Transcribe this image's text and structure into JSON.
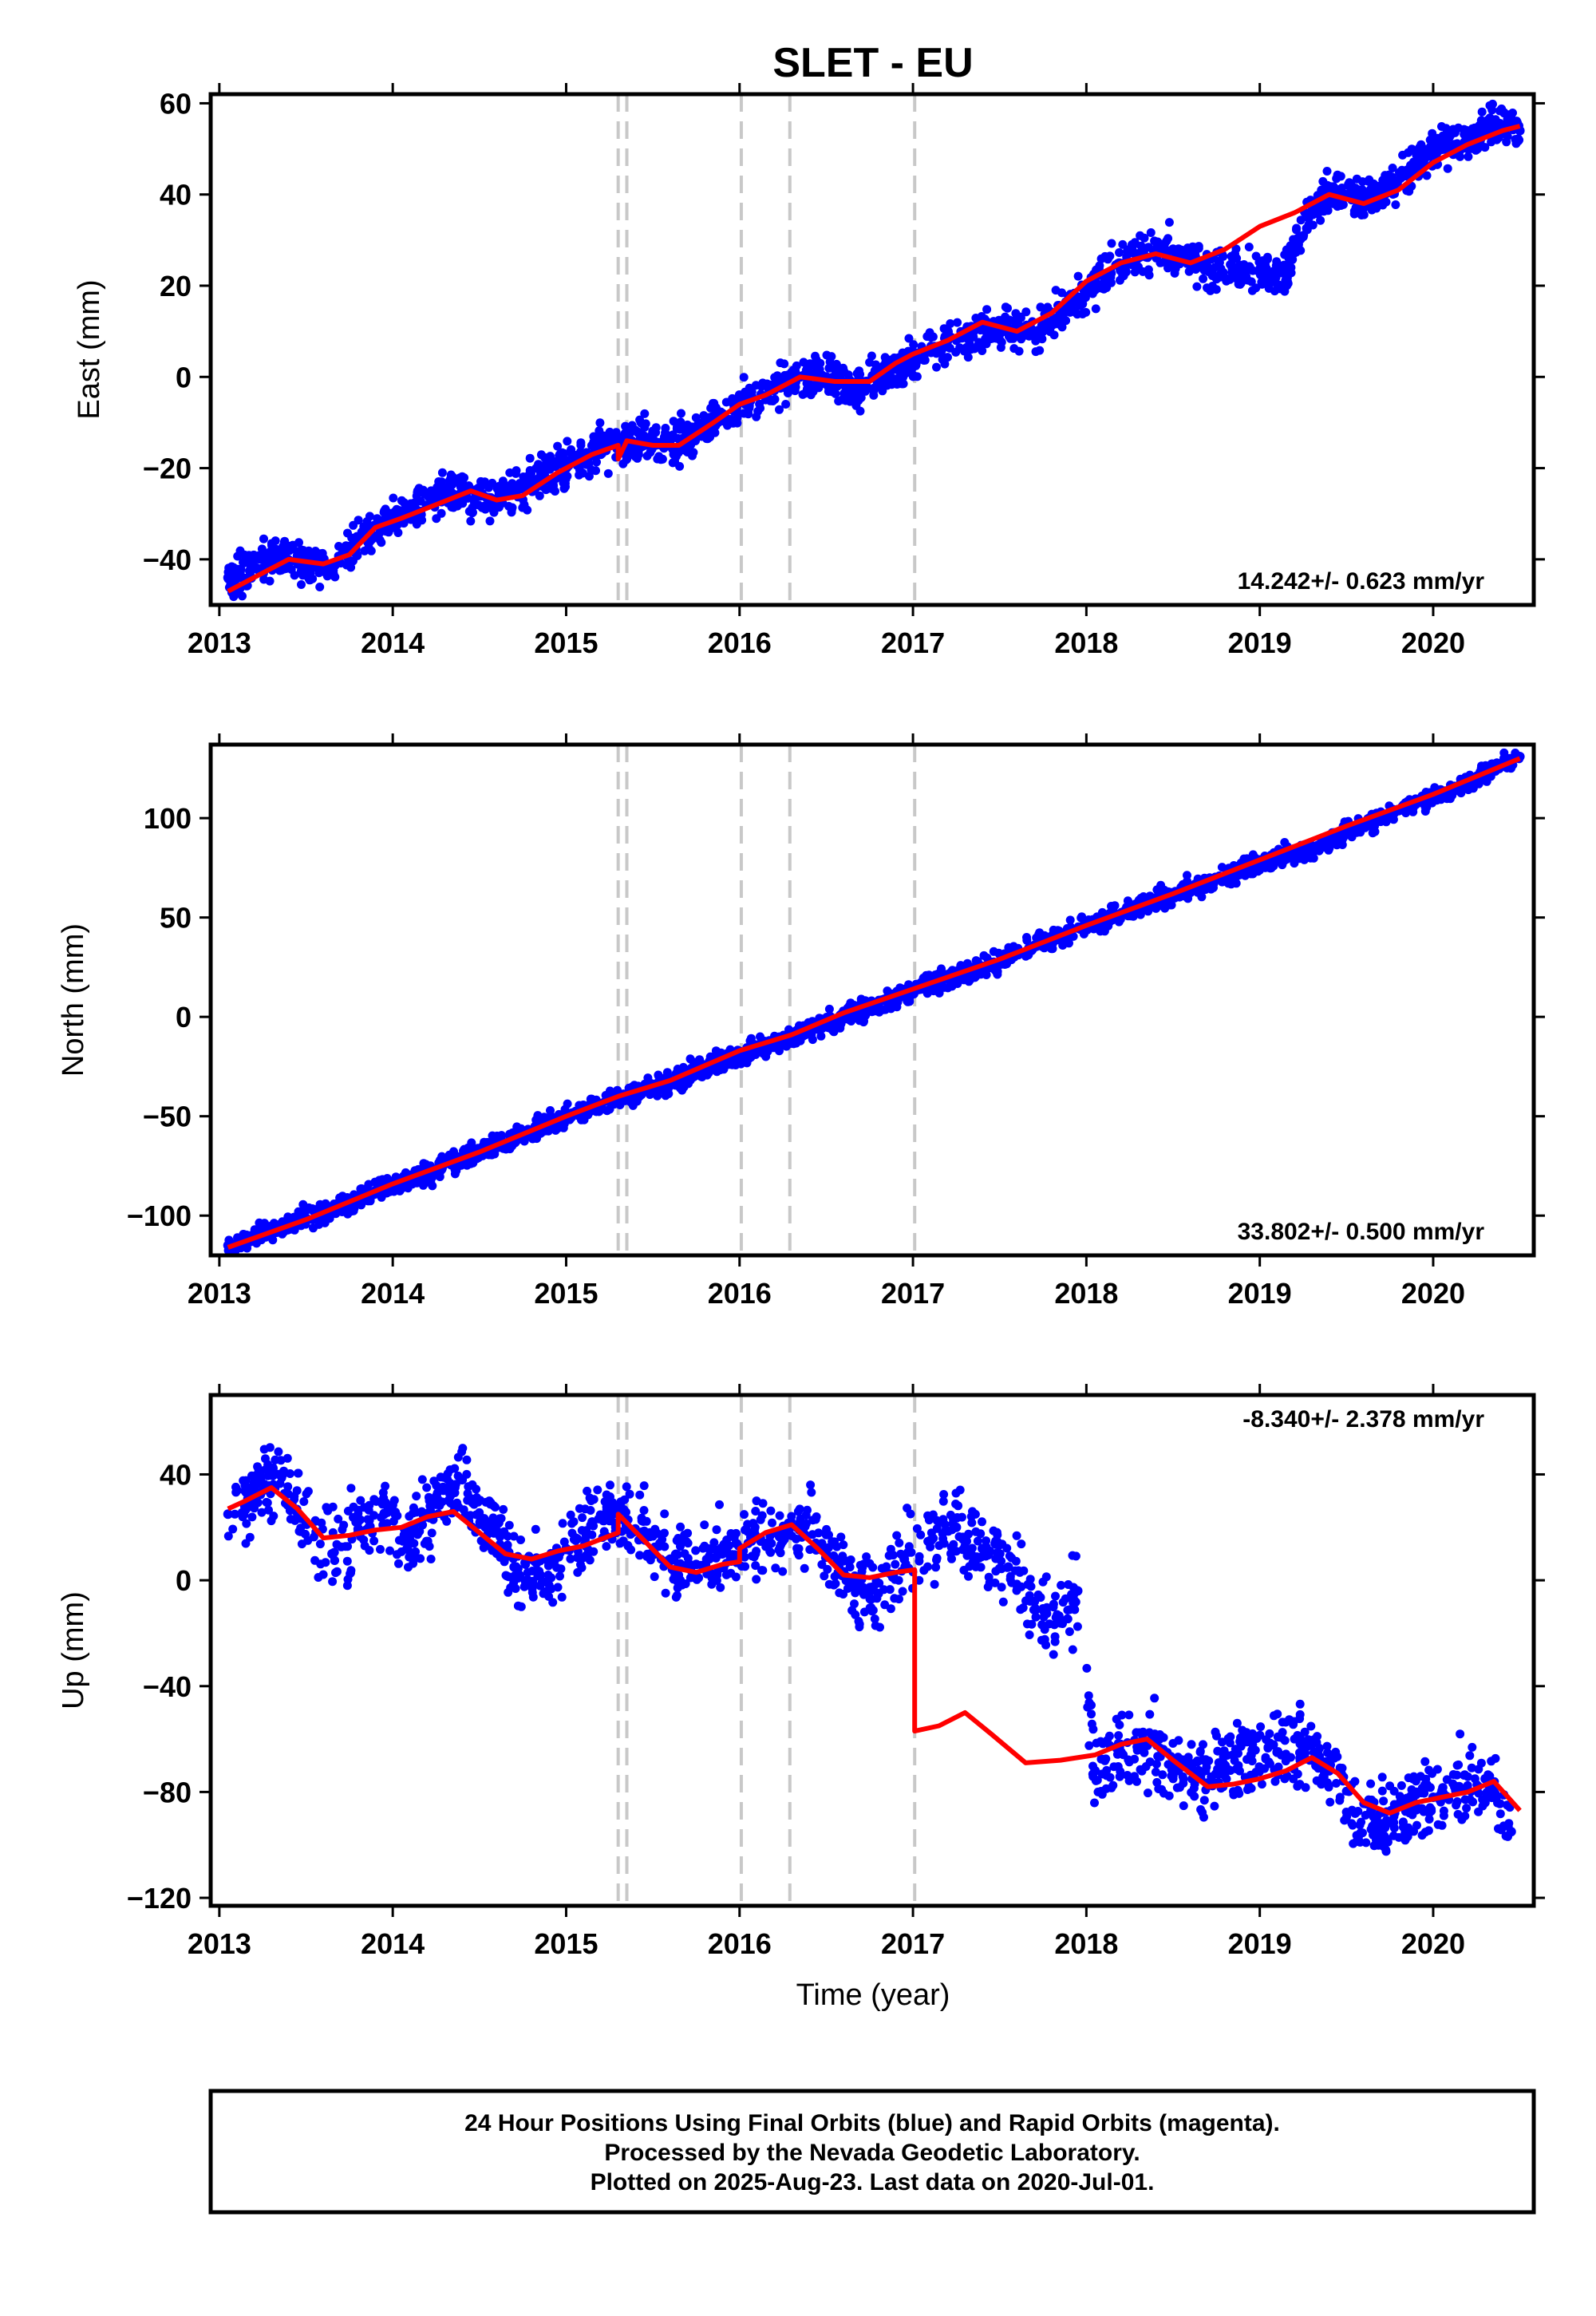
{
  "figure": {
    "title": "SLET - EU",
    "xlabel": "Time (year)",
    "footer_lines": [
      "24 Hour Positions Using Final Orbits (blue) and Rapid Orbits (magenta).",
      "Processed by the Nevada Geodetic Laboratory.",
      "Plotted on 2025-Aug-23. Last data on 2020-Jul-01."
    ],
    "colors": {
      "data": "#0000ff",
      "fit": "#ff0000",
      "steps": "#c8c8c8",
      "frame": "#000000"
    }
  },
  "chart_data": [
    {
      "type": "scatter",
      "ylabel": "East (mm)",
      "rate_label": "14.242+/- 0.623 mm/yr",
      "xlim": [
        2012.95,
        2020.58
      ],
      "ylim": [
        -50,
        62
      ],
      "xticks": [
        2013,
        2014,
        2015,
        2016,
        2017,
        2018,
        2019,
        2020
      ],
      "yticks": [
        -40,
        -20,
        0,
        20,
        40,
        60
      ],
      "ytick_labels": [
        "−40",
        "−20",
        "0",
        "20",
        "40",
        "60"
      ],
      "step_epochs": [
        2015.3,
        2015.35,
        2016.01,
        2016.29,
        2017.01
      ],
      "series": [
        {
          "kind": "fit_model",
          "x": [
            2013.05,
            2013.2,
            2013.4,
            2013.6,
            2013.75,
            2013.9,
            2014.05,
            2014.25,
            2014.45,
            2014.6,
            2014.75,
            2014.95,
            2015.15,
            2015.3,
            2015.3,
            2015.35,
            2015.5,
            2015.65,
            2015.85,
            2016.0,
            2016.15,
            2016.35,
            2016.55,
            2016.75,
            2016.9,
            2017.0,
            2017.0,
            2017.2,
            2017.4,
            2017.6,
            2017.8,
            2018.0,
            2018.2,
            2018.4,
            2018.6,
            2018.8,
            2019.0,
            2019.2,
            2019.4,
            2019.6,
            2019.8,
            2020.0,
            2020.2,
            2020.4,
            2020.5
          ],
          "y": [
            -47,
            -44,
            -40,
            -41,
            -39,
            -33,
            -31,
            -28,
            -25,
            -27,
            -26,
            -21,
            -17,
            -15,
            -18,
            -14,
            -15,
            -15,
            -10,
            -6,
            -4,
            0,
            -1,
            -1,
            3,
            5,
            5,
            8,
            12,
            10,
            14,
            21,
            25,
            27,
            25,
            28,
            33,
            36,
            40,
            38,
            41,
            47,
            51,
            54,
            55
          ]
        },
        {
          "kind": "observations",
          "x": [
            2013.05,
            2013.2,
            2013.35,
            2013.5,
            2013.65,
            2013.8,
            2013.95,
            2014.1,
            2014.25,
            2014.4,
            2014.55,
            2014.7,
            2014.85,
            2015.0,
            2015.15,
            2015.3,
            2015.45,
            2015.6,
            2015.75,
            2015.9,
            2016.05,
            2016.2,
            2016.35,
            2016.5,
            2016.65,
            2016.8,
            2017.1,
            2017.3,
            2017.5,
            2017.7,
            2017.9,
            2018.1,
            2018.3,
            2018.5,
            2018.7,
            2018.85,
            2019.0,
            2019.15,
            2019.3,
            2019.45,
            2019.6,
            2019.75,
            2019.9,
            2020.05,
            2020.2,
            2020.35,
            2020.5
          ],
          "y": [
            -44,
            -42,
            -39,
            -41,
            -42,
            -36,
            -32,
            -30,
            -27,
            -25,
            -28,
            -25,
            -22,
            -19,
            -17,
            -15,
            -13,
            -15,
            -12,
            -8,
            -5,
            -3,
            0,
            0,
            -3,
            -1,
            6,
            9,
            11,
            10,
            15,
            22,
            27,
            28,
            24,
            24,
            23,
            23,
            38,
            41,
            39,
            42,
            47,
            51,
            52,
            55,
            54
          ]
        }
      ]
    },
    {
      "type": "scatter",
      "ylabel": "North (mm)",
      "rate_label": "33.802+/- 0.500 mm/yr",
      "xlim": [
        2012.95,
        2020.58
      ],
      "ylim": [
        -120,
        137
      ],
      "xticks": [
        2013,
        2014,
        2015,
        2016,
        2017,
        2018,
        2019,
        2020
      ],
      "yticks": [
        -100,
        -50,
        0,
        50,
        100
      ],
      "ytick_labels": [
        "−100",
        "−50",
        "0",
        "50",
        "100"
      ],
      "step_epochs": [
        2015.3,
        2015.35,
        2016.01,
        2016.29,
        2017.01
      ],
      "series": [
        {
          "kind": "fit_model",
          "x": [
            2013.05,
            2013.5,
            2014.0,
            2014.5,
            2015.0,
            2015.3,
            2015.6,
            2016.0,
            2016.3,
            2016.6,
            2017.0,
            2017.5,
            2018.0,
            2018.5,
            2019.0,
            2019.5,
            2020.0,
            2020.5
          ],
          "y": [
            -116,
            -102,
            -84,
            -68,
            -50,
            -40,
            -32,
            -17,
            -9,
            2,
            14,
            29,
            46,
            62,
            79,
            96,
            112,
            130
          ]
        },
        {
          "kind": "observations",
          "x": [
            2013.05,
            2013.3,
            2013.6,
            2013.9,
            2014.2,
            2014.5,
            2014.8,
            2015.1,
            2015.35,
            2015.6,
            2015.9,
            2016.2,
            2016.5,
            2016.8,
            2017.1,
            2017.4,
            2017.7,
            2018.0,
            2018.3,
            2018.6,
            2018.9,
            2019.1,
            2019.3,
            2019.6,
            2019.9,
            2020.2,
            2020.5
          ],
          "y": [
            -115,
            -108,
            -98,
            -88,
            -79,
            -68,
            -57,
            -47,
            -40,
            -33,
            -22,
            -13,
            -3,
            6,
            17,
            25,
            36,
            46,
            55,
            64,
            74,
            80,
            84,
            97,
            107,
            118,
            131
          ]
        }
      ]
    },
    {
      "type": "scatter",
      "ylabel": "Up (mm)",
      "rate_label": "-8.340+/- 2.378 mm/yr",
      "xlim": [
        2012.95,
        2020.58
      ],
      "ylim": [
        -123,
        70
      ],
      "xticks": [
        2013,
        2014,
        2015,
        2016,
        2017,
        2018,
        2019,
        2020
      ],
      "yticks": [
        -120,
        -80,
        -40,
        0,
        40
      ],
      "ytick_labels": [
        "−120",
        "−80",
        "−40",
        "0",
        "40"
      ],
      "step_epochs": [
        2015.3,
        2015.35,
        2016.01,
        2016.29,
        2017.01
      ],
      "series": [
        {
          "kind": "fit_model",
          "x": [
            2013.05,
            2013.15,
            2013.3,
            2013.45,
            2013.6,
            2013.75,
            2013.9,
            2014.05,
            2014.2,
            2014.35,
            2014.5,
            2014.65,
            2014.8,
            2014.95,
            2015.1,
            2015.3,
            2015.3,
            2015.45,
            2015.6,
            2015.75,
            2015.9,
            2016.0,
            2016.0,
            2016.15,
            2016.3,
            2016.45,
            2016.6,
            2016.75,
            2016.9,
            2017.01,
            2017.01,
            2017.15,
            2017.3,
            2017.45,
            2017.65,
            2017.85,
            2018.05,
            2018.2,
            2018.35,
            2018.5,
            2018.7,
            2018.85,
            2019.0,
            2019.15,
            2019.3,
            2019.45,
            2019.6,
            2019.75,
            2019.9,
            2020.05,
            2020.2,
            2020.35,
            2020.5
          ],
          "y": [
            27,
            30,
            35,
            27,
            16,
            17,
            19,
            20,
            24,
            26,
            18,
            10,
            8,
            11,
            13,
            18,
            25,
            15,
            5,
            3,
            6,
            7,
            12,
            18,
            21,
            12,
            2,
            1,
            3,
            4,
            -57,
            -55,
            -50,
            -58,
            -69,
            -68,
            -66,
            -62,
            -60,
            -68,
            -78,
            -77,
            -75,
            -72,
            -67,
            -73,
            -84,
            -88,
            -84,
            -82,
            -80,
            -76,
            -87
          ]
        },
        {
          "kind": "observations",
          "x": [
            2013.05,
            2013.2,
            2013.35,
            2013.5,
            2013.65,
            2013.8,
            2013.95,
            2014.1,
            2014.25,
            2014.4,
            2014.55,
            2014.7,
            2014.85,
            2015.0,
            2015.15,
            2015.3,
            2015.45,
            2015.6,
            2015.75,
            2015.9,
            2016.05,
            2016.2,
            2016.35,
            2016.5,
            2016.65,
            2016.8,
            2016.95,
            2017.1,
            2017.25,
            2017.4,
            2017.55,
            2017.7,
            2017.85,
            2017.95,
            2018.05,
            2018.2,
            2018.35,
            2018.5,
            2018.65,
            2018.8,
            2018.95,
            2019.1,
            2019.25,
            2019.4,
            2019.55,
            2019.7,
            2019.85,
            2020.0,
            2020.15,
            2020.3,
            2020.45
          ],
          "y": [
            25,
            32,
            40,
            22,
            10,
            18,
            25,
            15,
            30,
            38,
            20,
            5,
            2,
            12,
            22,
            25,
            18,
            8,
            6,
            10,
            14,
            18,
            22,
            10,
            0,
            -5,
            8,
            15,
            20,
            12,
            5,
            -8,
            -15,
            -4,
            -72,
            -65,
            -62,
            -70,
            -74,
            -70,
            -66,
            -65,
            -62,
            -72,
            -88,
            -92,
            -86,
            -82,
            -78,
            -75,
            -95
          ]
        }
      ]
    }
  ]
}
